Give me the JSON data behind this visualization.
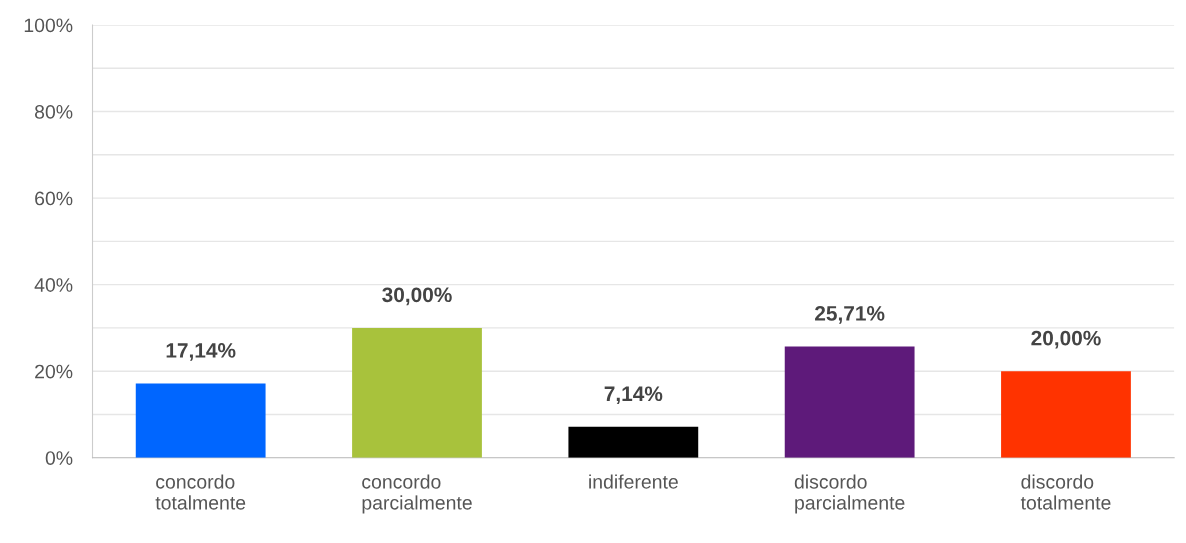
{
  "chart_data": {
    "type": "bar",
    "categories": [
      "concordo\ntotalmente",
      "concordo\nparcialmente",
      "indiferente",
      "discordo\nparcialmente",
      "discordo\ntotalmente"
    ],
    "values": [
      17.14,
      30.0,
      7.14,
      25.71,
      20.0
    ],
    "colors": [
      "#0066ff",
      "#a8c23c",
      "#000000",
      "#5e1a7a",
      "#ff3300"
    ],
    "value_labels": [
      "17,14%",
      "30,00%",
      "7,14%",
      "25,71%",
      "20,00%"
    ],
    "ylim": [
      0,
      100
    ],
    "yticks": [
      {
        "value": 0,
        "label": "0%"
      },
      {
        "value": 10,
        "label": null
      },
      {
        "value": 20,
        "label": "20%"
      },
      {
        "value": 30,
        "label": null
      },
      {
        "value": 40,
        "label": "40%"
      },
      {
        "value": 50,
        "label": null
      },
      {
        "value": 60,
        "label": "60%"
      },
      {
        "value": 70,
        "label": null
      },
      {
        "value": 80,
        "label": "80%"
      },
      {
        "value": 90,
        "label": null
      },
      {
        "value": 100,
        "label": "100%"
      }
    ],
    "grid": "y"
  }
}
